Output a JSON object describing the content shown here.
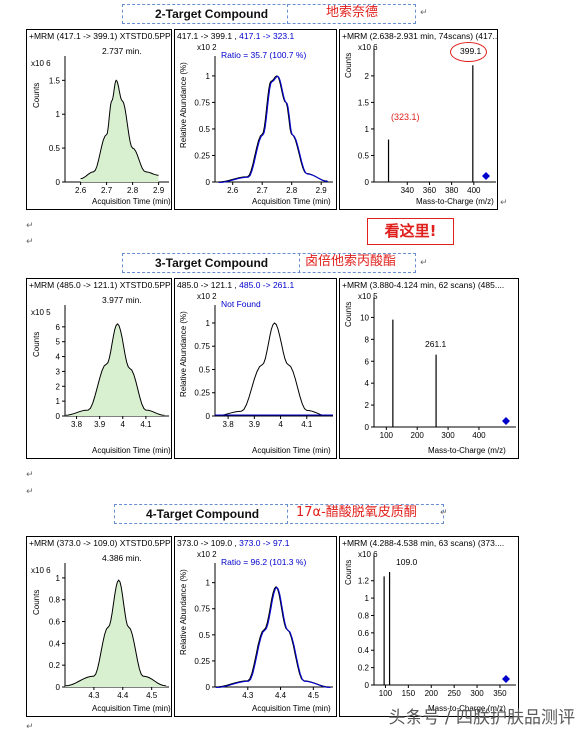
{
  "sections": [
    {
      "title_en": "2-Target Compound",
      "title_cn": "地索奈德",
      "chrom": {
        "header": "+MRM (417.1 -> 399.1) XTSTD0.5PPM.d",
        "multiplier": "x10 6",
        "peak_label": "2.737 min.",
        "ylabel": "Counts",
        "xlabel": "Acquisition Time (min)"
      },
      "ratio": {
        "header_pre": "417.1 -> 399.1 , ",
        "header_blue": "417.1 -> 323.1",
        "annot": "Ratio = 35.7 (100.7 %)",
        "multiplier": "x10 2",
        "ylabel": "Relative Abundance (%)",
        "xlabel": "Acquisition Time (min)"
      },
      "spectrum": {
        "header": "+MRM (2.638-2.931 min, 74scans) (417...",
        "multiplier": "x10 6",
        "ylabel": "Counts",
        "xlabel": "Mass-to-Charge (m/z)",
        "labels": [
          "399.1",
          "(323.1)"
        ]
      }
    },
    {
      "title_en": "3-Target Compound",
      "title_cn": "卤倍他索丙酸酯",
      "chrom": {
        "header": "+MRM (485.0 -> 121.1) XTSTD0.5PPM.d",
        "multiplier": "x10 5",
        "peak_label": "3.977 min.",
        "ylabel": "Counts",
        "xlabel": "Acquisition Time (min)"
      },
      "ratio": {
        "header_pre": "485.0 -> 121.1 , ",
        "header_blue": "485.0 -> 261.1",
        "annot": "Not Found",
        "multiplier": "x10 2",
        "ylabel": "Relative Abundance (%)",
        "xlabel": "Acquisition Time (min)"
      },
      "spectrum": {
        "header": "+MRM (3.880-4.124 min, 62 scans) (485....",
        "multiplier": "x10 5",
        "ylabel": "Counts",
        "xlabel": "Mass-to-Charge (m/z)",
        "labels": [
          "261.1"
        ]
      }
    },
    {
      "title_en": "4-Target Compound",
      "title_cn": "17α-醋酸脱氧皮质酮",
      "chrom": {
        "header": "+MRM (373.0 -> 109.0) XTSTD0.5PPM.d",
        "multiplier": "x10 6",
        "peak_label": "4.386 min.",
        "ylabel": "Counts",
        "xlabel": "Acquisition Time (min)"
      },
      "ratio": {
        "header_pre": "373.0 -> 109.0 , ",
        "header_blue": "373.0 -> 97.1",
        "annot": "Ratio = 96.2 (101.3 %)",
        "multiplier": "x10 2",
        "ylabel": "Relative Abundance (%)",
        "xlabel": "Acquisition Time (min)"
      },
      "spectrum": {
        "header": "+MRM (4.288-4.538 min, 63 scans) (373....",
        "multiplier": "x10 6",
        "ylabel": "Counts",
        "xlabel": "Mass-to-Charge (m/z)",
        "labels": [
          "109.0"
        ]
      }
    }
  ],
  "callout": "看这里!",
  "watermark": "头条号 / 四朕护肤品测评",
  "colors": {
    "accent_red": "#e0201c",
    "series_blue": "#0000cc",
    "peak_fill": "#d8f0d0"
  },
  "chart_data": [
    {
      "type": "line",
      "panel": "2-chromatogram",
      "x": [
        2.6,
        2.65,
        2.7,
        2.72,
        2.737,
        2.76,
        2.8,
        2.85,
        2.9
      ],
      "y": [
        0.05,
        0.15,
        0.7,
        1.2,
        1.5,
        1.2,
        0.5,
        0.15,
        0.1
      ],
      "xticks": [
        2.6,
        2.7,
        2.8,
        2.9
      ],
      "yticks": [
        0,
        0.5,
        1,
        1.5
      ],
      "xlim": [
        2.54,
        2.94
      ],
      "ylim": [
        0,
        1.8
      ]
    },
    {
      "type": "line",
      "panel": "2-qualifier-ratio",
      "x": [
        2.55,
        2.65,
        2.7,
        2.73,
        2.75,
        2.78,
        2.8,
        2.85,
        2.92
      ],
      "y": [
        0,
        0.05,
        0.45,
        0.95,
        1.0,
        0.75,
        0.45,
        0.08,
        0.01
      ],
      "xticks": [
        2.6,
        2.7,
        2.8,
        2.9
      ],
      "yticks": [
        0,
        0.25,
        0.5,
        0.75,
        1
      ],
      "xlim": [
        2.54,
        2.94
      ],
      "ylim": [
        0,
        1.15
      ]
    },
    {
      "type": "bar",
      "panel": "2-spectrum",
      "x": [
        323.1,
        399.1
      ],
      "y": [
        0.8,
        2.2
      ],
      "xticks": [
        340,
        360,
        380,
        400
      ],
      "yticks": [
        0,
        0.5,
        1,
        1.5,
        2
      ],
      "xlim": [
        310,
        420
      ],
      "ylim": [
        0,
        2.45
      ]
    },
    {
      "type": "line",
      "panel": "3-chromatogram",
      "x": [
        3.75,
        3.85,
        3.93,
        3.977,
        4.03,
        4.1,
        4.18
      ],
      "y": [
        0.05,
        0.4,
        3.5,
        6.2,
        3.2,
        0.4,
        0.05
      ],
      "xticks": [
        3.8,
        3.9,
        4.0,
        4.1
      ],
      "yticks": [
        0,
        1,
        2,
        3,
        4,
        5,
        6
      ],
      "xlim": [
        3.75,
        4.2
      ],
      "ylim": [
        0,
        7.2
      ]
    },
    {
      "type": "line",
      "panel": "3-qualifier-ratio",
      "x": [
        3.75,
        3.85,
        3.93,
        3.977,
        4.03,
        4.1,
        4.18
      ],
      "y": [
        0,
        0.05,
        0.55,
        1.0,
        0.55,
        0.06,
        0
      ],
      "xticks": [
        3.8,
        3.9,
        4.0,
        4.1
      ],
      "yticks": [
        0,
        0.25,
        0.5,
        0.75,
        1
      ],
      "xlim": [
        3.75,
        4.2
      ],
      "ylim": [
        0,
        1.15
      ]
    },
    {
      "type": "bar",
      "panel": "3-spectrum",
      "x": [
        121.1,
        261.1
      ],
      "y": [
        9.8,
        6.6
      ],
      "xticks": [
        100,
        200,
        300,
        400
      ],
      "yticks": [
        0,
        2,
        4,
        6,
        8,
        10
      ],
      "xlim": [
        60,
        520
      ],
      "ylim": [
        0,
        11.5
      ]
    },
    {
      "type": "line",
      "panel": "4-chromatogram",
      "x": [
        4.2,
        4.3,
        4.35,
        4.386,
        4.42,
        4.47,
        4.55
      ],
      "y": [
        0.01,
        0.1,
        0.55,
        0.98,
        0.55,
        0.1,
        0.01
      ],
      "xticks": [
        4.3,
        4.4,
        4.5
      ],
      "yticks": [
        0,
        0.2,
        0.4,
        0.6,
        0.8,
        1
      ],
      "xlim": [
        4.2,
        4.56
      ],
      "ylim": [
        0,
        1.1
      ]
    },
    {
      "type": "line",
      "panel": "4-qualifier-ratio",
      "x": [
        4.2,
        4.3,
        4.35,
        4.386,
        4.42,
        4.47,
        4.55
      ],
      "y": [
        0,
        0.06,
        0.55,
        0.96,
        0.55,
        0.06,
        0
      ],
      "xticks": [
        4.3,
        4.4,
        4.5
      ],
      "yticks": [
        0,
        0.25,
        0.5,
        0.75,
        1
      ],
      "xlim": [
        4.2,
        4.56
      ],
      "ylim": [
        0,
        1.15
      ]
    },
    {
      "type": "bar",
      "panel": "4-spectrum",
      "x": [
        97.1,
        109.0
      ],
      "y": [
        1.25,
        1.3
      ],
      "xticks": [
        100,
        150,
        200,
        250,
        300,
        350
      ],
      "yticks": [
        0,
        0.2,
        0.4,
        0.6,
        0.8,
        1,
        1.2
      ],
      "xlim": [
        75,
        385
      ],
      "ylim": [
        0,
        1.45
      ]
    }
  ]
}
